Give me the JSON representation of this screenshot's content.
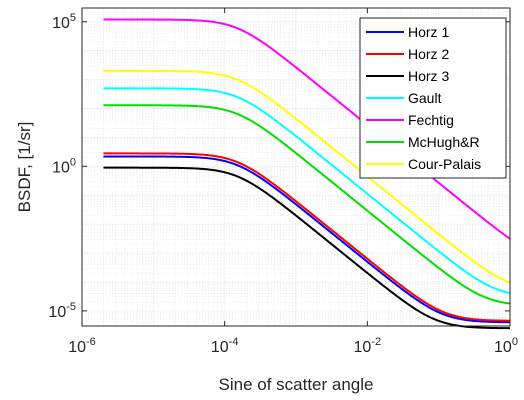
{
  "chart_data": {
    "type": "line",
    "xlabel": "Sine of scatter angle",
    "ylabel": "BSDF, [1/sr]",
    "xscale": "log",
    "yscale": "log",
    "xlim": [
      1e-06,
      1
    ],
    "ylim": [
      3e-06,
      300000.0
    ],
    "x_ticks": [
      {
        "base": "10",
        "exp": "-6",
        "value": 1e-06
      },
      {
        "base": "10",
        "exp": "-4",
        "value": 0.0001
      },
      {
        "base": "10",
        "exp": "-2",
        "value": 0.01
      },
      {
        "base": "10",
        "exp": "0",
        "value": 1
      }
    ],
    "y_ticks": [
      {
        "base": "10",
        "exp": "-5",
        "value": 1e-05
      },
      {
        "base": "10",
        "exp": "0",
        "value": 1
      },
      {
        "base": "10",
        "exp": "5",
        "value": 100000.0
      }
    ],
    "grid": true,
    "minor_grid": true,
    "legend_position": "top-right",
    "x_data_start": 2e-06,
    "series": [
      {
        "name": "Horz 1",
        "color": "#0000ff",
        "plateau": 2.2,
        "knee": 0.00015,
        "slope": -2,
        "floor": 4e-06
      },
      {
        "name": "Horz 2",
        "color": "#ff0000",
        "plateau": 2.8,
        "knee": 0.00015,
        "slope": -2,
        "floor": 4.5e-06
      },
      {
        "name": "Horz 3",
        "color": "#000000",
        "plateau": 0.9,
        "knee": 0.00015,
        "slope": -2,
        "floor": 2.5e-06
      },
      {
        "name": "Gault",
        "color": "#00ffff",
        "plateau": 500,
        "knee": 0.00015,
        "slope": -2,
        "floor": 3e-05
      },
      {
        "name": "Fechtig",
        "color": "#ff00ff",
        "plateau": 120000,
        "knee": 0.00015,
        "slope": -2,
        "floor": 0.0004
      },
      {
        "name": "McHugh&R",
        "color": "#00e000",
        "plateau": 130,
        "knee": 0.00015,
        "slope": -2,
        "floor": 1.5e-05
      },
      {
        "name": "Cour-Palais",
        "color": "#ffff00",
        "plateau": 2000,
        "knee": 0.00015,
        "slope": -2,
        "floor": 5e-05
      }
    ]
  }
}
